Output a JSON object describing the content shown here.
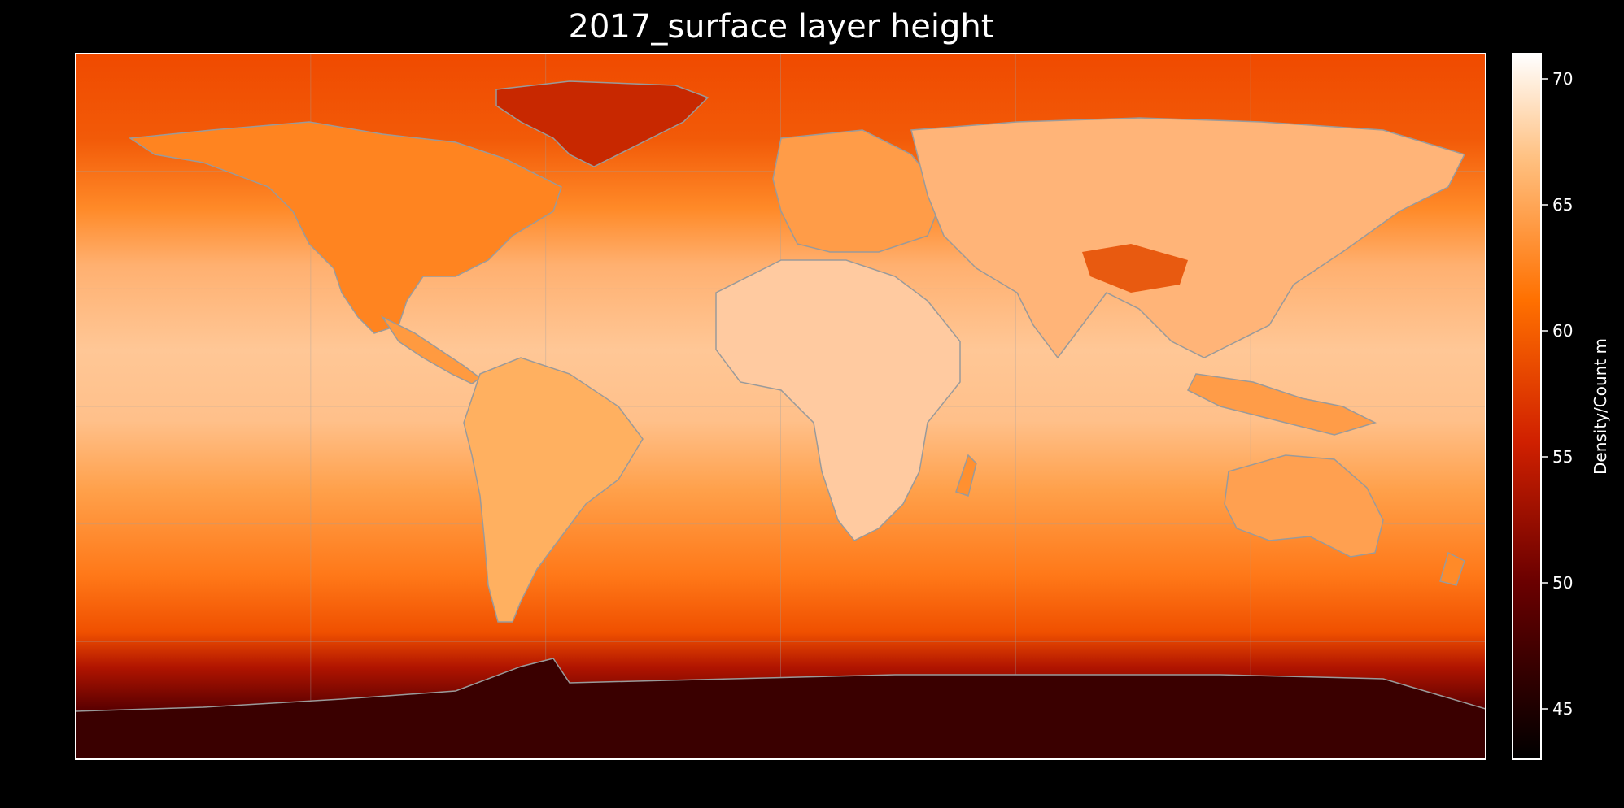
{
  "title": "2017_surface layer height",
  "colorbar": {
    "label": "Density/Count m",
    "min": 43.0,
    "max": 71.0,
    "ticks": [
      45,
      50,
      55,
      60,
      65,
      70
    ],
    "colormap": "gist_heat",
    "colors": [
      "#000000",
      "#7a0000",
      "#e03000",
      "#ff7d10",
      "#ffd6a8",
      "#ffffff"
    ]
  },
  "map": {
    "projection": "equirectangular",
    "lon_range": [
      -180,
      180
    ],
    "lat_range": [
      -90,
      90
    ],
    "gridlines": true,
    "coastline_color": "#9a9a9a",
    "border_color": "#000000"
  }
}
